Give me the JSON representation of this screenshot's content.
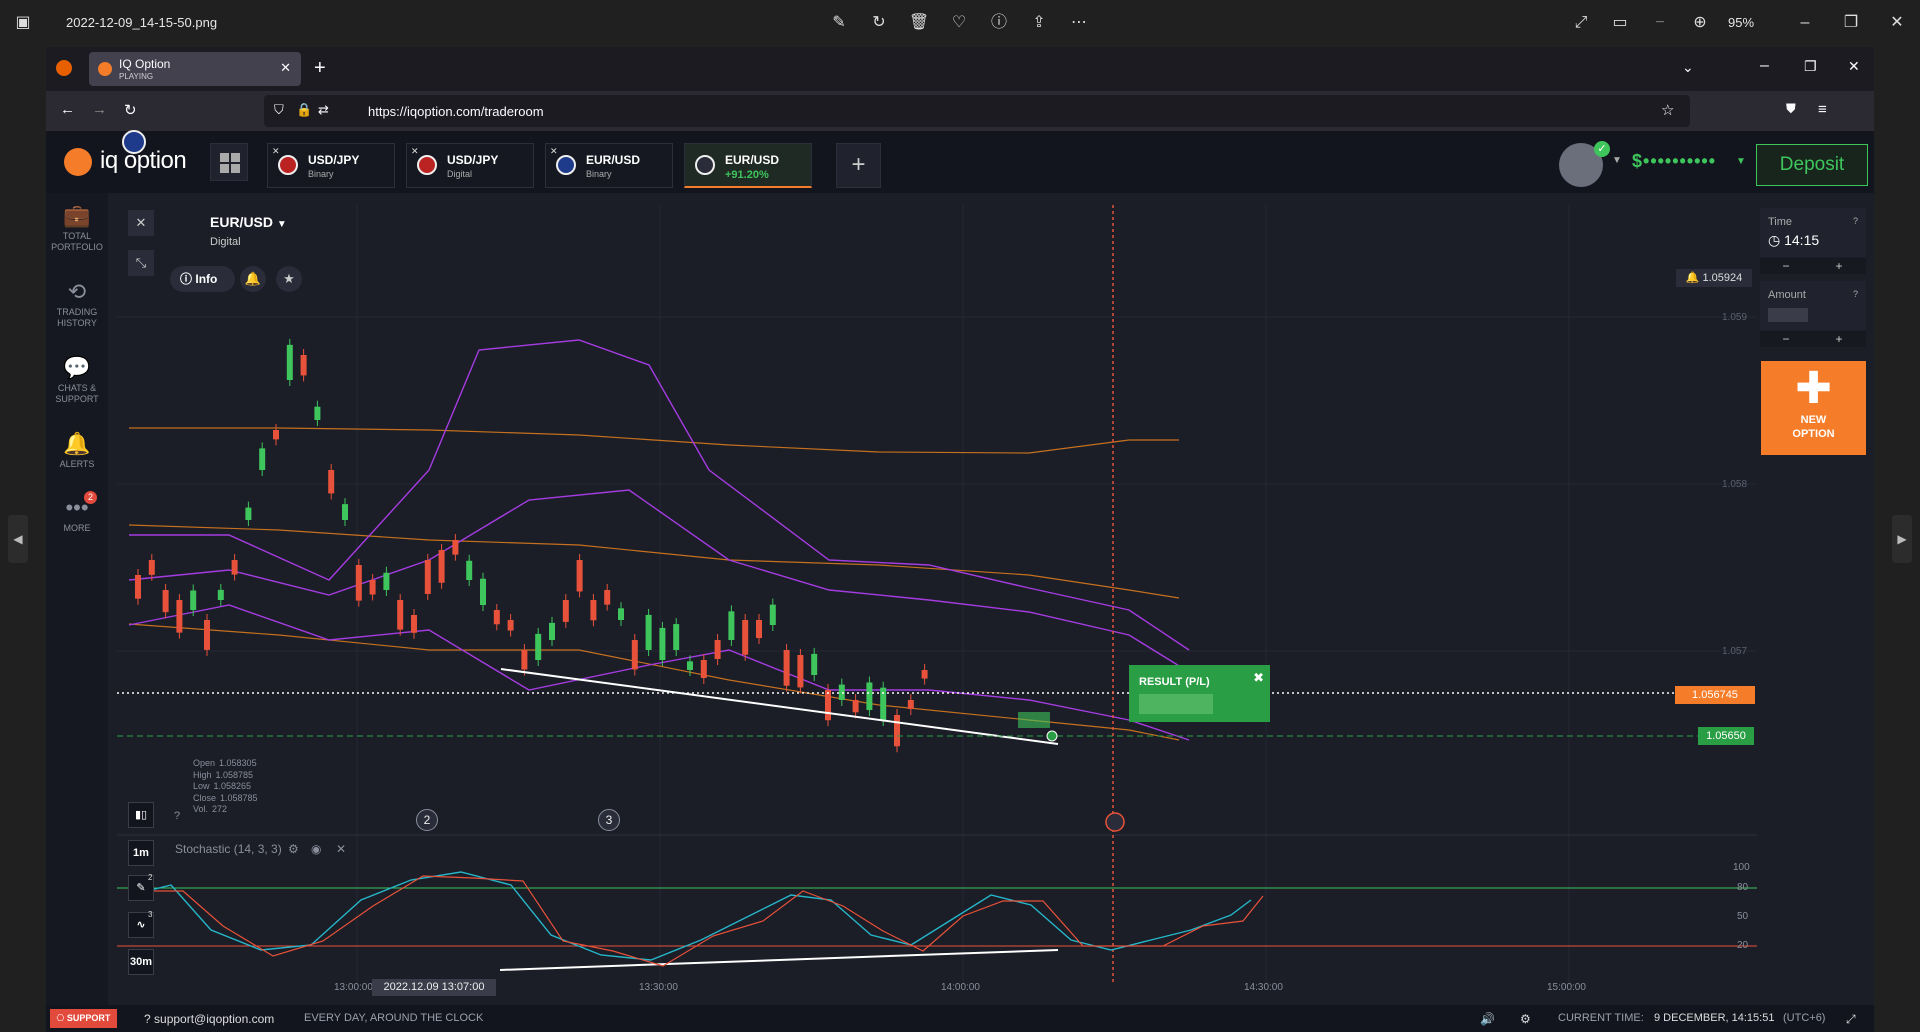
{
  "viewer": {
    "filename": "2022-12-09_14-15-50.png",
    "zoom": "95%"
  },
  "browser": {
    "tab_title": "IQ Option",
    "tab_subtitle": "PLAYING",
    "url": "https://iqoption.com/traderoom"
  },
  "app": {
    "logo": "iq option",
    "asset_tabs": [
      {
        "name": "USD/JPY",
        "sub": "Binary"
      },
      {
        "name": "USD/JPY",
        "sub": "Digital"
      },
      {
        "name": "EUR/USD",
        "sub": "Binary"
      },
      {
        "name": "EUR/USD",
        "sub": "+91.20%"
      }
    ],
    "balance": "$••••••••••",
    "deposit_label": "Deposit"
  },
  "sidebar": {
    "items": [
      {
        "label1": "TOTAL",
        "label2": "PORTFOLIO",
        "icon": "briefcase-icon"
      },
      {
        "label1": "TRADING",
        "label2": "HISTORY",
        "icon": "history-icon"
      },
      {
        "label1": "CHATS &",
        "label2": "SUPPORT",
        "icon": "chat-icon"
      },
      {
        "label1": "ALERTS",
        "label2": "",
        "icon": "bell-icon"
      },
      {
        "label1": "MORE",
        "label2": "",
        "icon": "more-icon"
      }
    ],
    "more_badge": "2"
  },
  "chart": {
    "asset": "EUR/USD",
    "asset_type": "Digital",
    "info_label": "Info",
    "top_price": "1.05924",
    "current_price": "1.056745",
    "strike_price": "1.05650",
    "result_label": "RESULT (P/L)",
    "ohlc": {
      "open_label": "Open",
      "open": "1.058305",
      "high_label": "High",
      "high": "1.058785",
      "low_label": "Low",
      "low": "1.058265",
      "close_label": "Close",
      "close": "1.058785",
      "vol_label": "Vol.",
      "vol": "272"
    },
    "markers": [
      "2",
      "3"
    ],
    "timeframes": {
      "candle": "1m",
      "period": "30m"
    },
    "tool_badges": {
      "draw": "2",
      "indicator": "3"
    },
    "stochastic_label": "Stochastic (14, 3, 3)",
    "date_tag": "2022.12.09 13:07:00"
  },
  "chart_data": {
    "type": "candlestick",
    "y_ticks": [
      "1.059",
      "1.058",
      "1.057"
    ],
    "x_ticks": [
      "13:00:00",
      "13:30:00",
      "14:00:00",
      "14:30:00",
      "15:00:00"
    ],
    "stoch_ticks": [
      "100",
      "80",
      "50",
      "20"
    ],
    "colors": {
      "up": "#3ec55c",
      "down": "#e8523a",
      "bb_fast": "#a43ce0",
      "bb_slow": "#d87a1e",
      "stoch_k": "#26b6c9",
      "stoch_d": "#e8523a"
    }
  },
  "right_panel": {
    "time_label": "Time",
    "time_value": "14:15",
    "amount_label": "Amount",
    "minus": "−",
    "plus": "+",
    "new_option_1": "NEW",
    "new_option_2": "OPTION"
  },
  "bottom": {
    "support_label": "SUPPORT",
    "email": "support@iqoption.com",
    "hours": "EVERY DAY, AROUND THE CLOCK",
    "current_time_label": "CURRENT TIME:",
    "current_time": "9 DECEMBER, 14:15:51",
    "tz": "(UTC+6)"
  }
}
